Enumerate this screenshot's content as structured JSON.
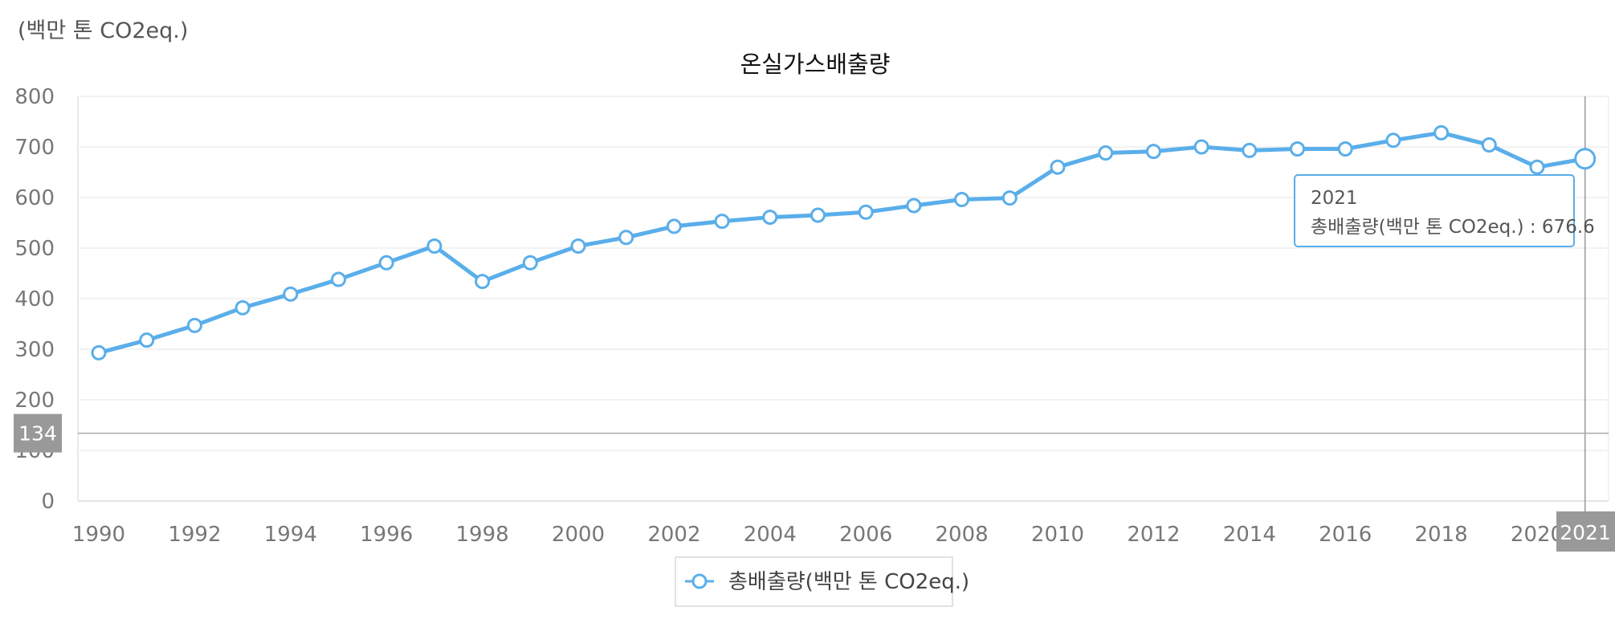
{
  "chart_data": {
    "type": "line",
    "title": "온실가스배출량",
    "unit_label": "(백만 톤 CO2eq.)",
    "ylim": [
      0,
      800
    ],
    "yticks": [
      0,
      100,
      200,
      300,
      400,
      500,
      600,
      700,
      800
    ],
    "xlim": [
      1990,
      2021
    ],
    "xticks": [
      1990,
      1992,
      1994,
      1996,
      1998,
      2000,
      2002,
      2004,
      2006,
      2008,
      2010,
      2012,
      2014,
      2016,
      2018,
      2020
    ],
    "grid": true,
    "legend_position": "bottom-center",
    "x": [
      1990,
      1991,
      1992,
      1993,
      1994,
      1995,
      1996,
      1997,
      1998,
      1999,
      2000,
      2001,
      2002,
      2003,
      2004,
      2005,
      2006,
      2007,
      2008,
      2009,
      2010,
      2011,
      2012,
      2013,
      2014,
      2015,
      2016,
      2017,
      2018,
      2019,
      2020,
      2021
    ],
    "series": [
      {
        "name": "총배출량(백만 톤 CO2eq.)",
        "color": "#5aaeea",
        "values": [
          293,
          318,
          347,
          382,
          409,
          438,
          471,
          504,
          434,
          471,
          504,
          521,
          543,
          553,
          561,
          565,
          571,
          584,
          596,
          599,
          660,
          688,
          691,
          700,
          693,
          696,
          696,
          713,
          728,
          704,
          660,
          676.6
        ]
      }
    ],
    "crosshair": {
      "x_value": 2021,
      "x_label": "2021",
      "y_value": 134,
      "y_label": "134"
    },
    "tooltip": {
      "title": "2021",
      "series_label": "총배출량(백만 톤 CO2eq.)",
      "separator": " : ",
      "value": "676.6"
    }
  }
}
